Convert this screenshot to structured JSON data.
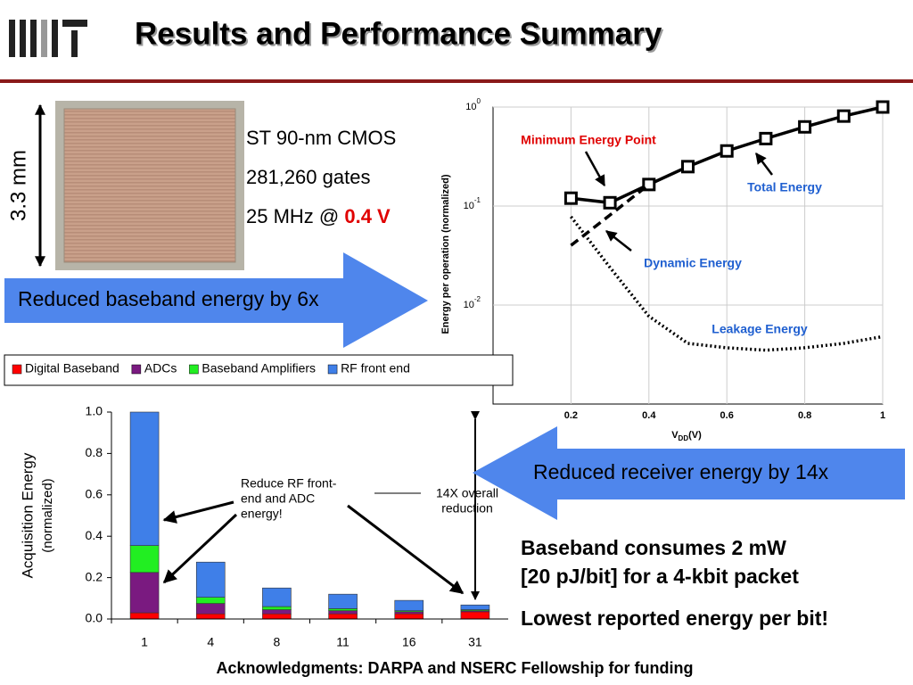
{
  "header": {
    "title": "Results and Performance Summary"
  },
  "chip": {
    "size_label": "3.3 mm",
    "specs": [
      "ST 90-nm CMOS",
      "281,260 gates"
    ],
    "freq": "25 MHz @ ",
    "voltage": "0.4 V"
  },
  "callouts": [
    "Reduced baseband energy by 6x",
    "Reduced receiver energy by 14x"
  ],
  "highlights": [
    "Baseband consumes 2 mW",
    "[20 pJ/bit] for a 4-kbit packet",
    "Lowest reported energy per bit!"
  ],
  "footer": "Acknowledgments: DARPA and NSERC Fellowship for funding",
  "chart_data": [
    {
      "type": "line",
      "log_y": true,
      "grid": true,
      "ylabel": "Energy per operation (normalized)",
      "xlabel": "V",
      "xlabel_sub": "DD",
      "xlabel_unit": "(V)",
      "x": [
        0.2,
        0.3,
        0.4,
        0.5,
        0.6,
        0.7,
        0.8,
        0.9,
        1
      ],
      "xlim": [
        0,
        1
      ],
      "xticks": [
        0.2,
        0.4,
        0.6,
        0.8,
        1
      ],
      "ylim": [
        0.001,
        1
      ],
      "yticks": [
        {
          "value": 1,
          "label": "10",
          "exponent": "0"
        },
        {
          "value": 0.1,
          "label": "10",
          "exponent": "-1"
        },
        {
          "value": 0.01,
          "label": "10",
          "exponent": "-2"
        }
      ],
      "series": [
        {
          "name": "Total Energy",
          "color": "#000000",
          "style": "solid",
          "marker": "square",
          "values": [
            0.12,
            0.108,
            0.165,
            0.25,
            0.36,
            0.48,
            0.63,
            0.81,
            1
          ]
        },
        {
          "name": "Dynamic Energy",
          "color": "#000000",
          "style": "dashed",
          "values": [
            0.04,
            0.081,
            0.165,
            null,
            null,
            null,
            null,
            null,
            null
          ]
        },
        {
          "name": "Leakage Energy",
          "color": "#000000",
          "style": "dotted",
          "values": [
            0.078,
            0.024,
            0.0077,
            0.0041,
            0.0037,
            0.0035,
            0.0037,
            0.0041,
            0.0048
          ]
        }
      ],
      "annotations": [
        {
          "text": "Minimum Energy Point",
          "color": "#e00000"
        },
        {
          "text": "Total Energy",
          "color": "#1f5fd0"
        },
        {
          "text": "Dynamic Energy",
          "color": "#1f5fd0"
        },
        {
          "text": "Leakage Energy",
          "color": "#1f5fd0"
        }
      ]
    },
    {
      "type": "bar",
      "stacked": true,
      "ylabel": [
        "Acquisition Energy",
        "(normalized)"
      ],
      "categories": [
        "1",
        "4",
        "8",
        "11",
        "16",
        "31"
      ],
      "ylim": [
        0,
        1
      ],
      "yticks": [
        {
          "value": 0,
          "label": "0.0"
        },
        {
          "value": 0.2,
          "label": "0.2"
        },
        {
          "value": 0.4,
          "label": "0.4"
        },
        {
          "value": 0.6,
          "label": "0.6"
        },
        {
          "value": 0.8,
          "label": "0.8"
        },
        {
          "value": 1,
          "label": "1.0"
        }
      ],
      "series": [
        {
          "name": "Digital Baseband",
          "color": "#ff0000",
          "values": [
            0.03,
            0.025,
            0.025,
            0.025,
            0.025,
            0.035
          ]
        },
        {
          "name": "ADCs",
          "color": "#7a1a80",
          "values": [
            0.195,
            0.05,
            0.02,
            0.015,
            0.01,
            0.005
          ]
        },
        {
          "name": "Baseband Amplifiers",
          "color": "#22ee22",
          "values": [
            0.13,
            0.03,
            0.015,
            0.01,
            0.005,
            0.005
          ]
        },
        {
          "name": "RF front end",
          "color": "#3f7fe8",
          "values": [
            0.645,
            0.17,
            0.09,
            0.07,
            0.05,
            0.023
          ]
        }
      ],
      "annotations": [
        {
          "lines": [
            "Reduce RF front-",
            "end and ADC",
            "energy!"
          ]
        },
        {
          "lines": [
            "14X overall",
            "reduction"
          ]
        }
      ]
    }
  ]
}
